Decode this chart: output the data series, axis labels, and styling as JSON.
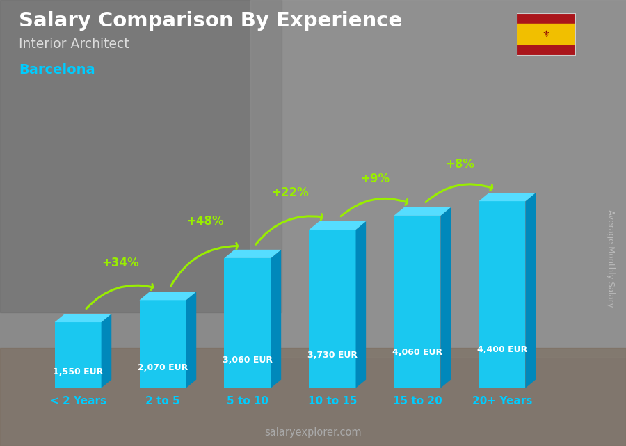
{
  "title": "Salary Comparison By Experience",
  "subtitle": "Interior Architect",
  "city": "Barcelona",
  "categories": [
    "< 2 Years",
    "2 to 5",
    "5 to 10",
    "10 to 15",
    "15 to 20",
    "20+ Years"
  ],
  "values": [
    1550,
    2070,
    3060,
    3730,
    4060,
    4400
  ],
  "labels": [
    "1,550 EUR",
    "2,070 EUR",
    "3,060 EUR",
    "3,730 EUR",
    "4,060 EUR",
    "4,400 EUR"
  ],
  "pct_changes": [
    "+34%",
    "+48%",
    "+22%",
    "+9%",
    "+8%"
  ],
  "ylabel": "Average Monthly Salary",
  "footer": "salaryexplorer.com",
  "bar_color_face": "#1ac8f0",
  "bar_color_side": "#0088bb",
  "bar_color_top": "#55ddff",
  "bg_color": "#808080",
  "title_color": "#ffffff",
  "subtitle_color": "#dddddd",
  "city_color": "#00ccff",
  "label_color": "#ffffff",
  "pct_color": "#99ee00",
  "xticklabel_color": "#00ccff",
  "footer_color": "#aaaaaa",
  "ylabel_color": "#bbbbbb"
}
